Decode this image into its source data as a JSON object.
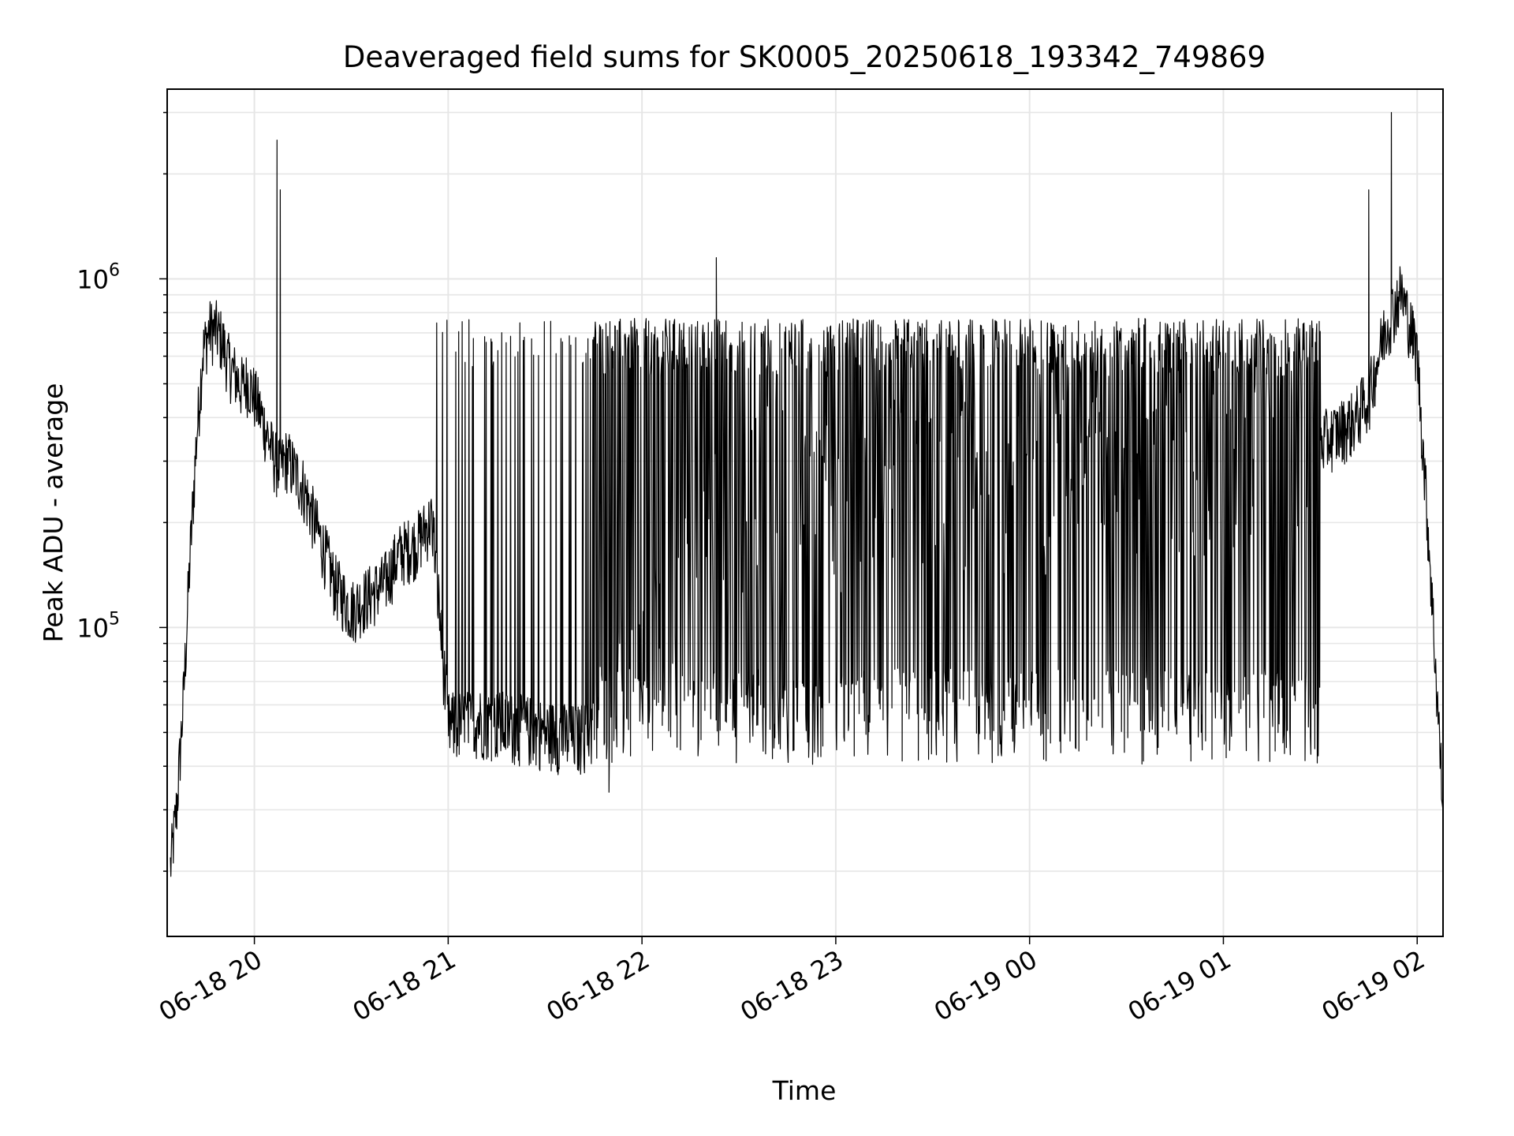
{
  "chart_data": {
    "type": "line",
    "title": "Deaveraged field sums for SK0005_20250618_193342_749869",
    "xlabel": "Time",
    "ylabel": "Peak ADU - average",
    "yscale": "log",
    "ylim": [
      13000,
      3500000
    ],
    "xlim": [
      "2025-06-18 19:33",
      "2025-06-19 02:08"
    ],
    "grid": true,
    "x_ticks": [
      {
        "label": "06-18 20",
        "value": "2025-06-18 20:00"
      },
      {
        "label": "06-18 21",
        "value": "2025-06-18 21:00"
      },
      {
        "label": "06-18 22",
        "value": "2025-06-18 22:00"
      },
      {
        "label": "06-18 23",
        "value": "2025-06-18 23:00"
      },
      {
        "label": "06-19 00",
        "value": "2025-06-19 00:00"
      },
      {
        "label": "06-19 01",
        "value": "2025-06-19 01:00"
      },
      {
        "label": "06-19 02",
        "value": "2025-06-19 02:00"
      }
    ],
    "y_ticks": [
      {
        "base": "10",
        "exp": "5",
        "value": 100000
      },
      {
        "base": "10",
        "exp": "6",
        "value": 1000000
      }
    ],
    "series": [
      {
        "color": "#000000",
        "x": [
          "2025-06-18 19:34",
          "2025-06-18 19:36",
          "2025-06-18 19:38",
          "2025-06-18 19:40",
          "2025-06-18 19:42",
          "2025-06-18 19:44",
          "2025-06-18 19:46",
          "2025-06-18 19:48",
          "2025-06-18 19:50",
          "2025-06-18 19:52",
          "2025-06-18 19:54",
          "2025-06-18 19:56",
          "2025-06-18 19:58",
          "2025-06-18 20:00",
          "2025-06-18 20:02",
          "2025-06-18 20:04",
          "2025-06-18 20:06",
          "2025-06-18 20:08",
          "2025-06-18 20:10",
          "2025-06-18 20:15",
          "2025-06-18 20:20",
          "2025-06-18 20:25",
          "2025-06-18 20:30",
          "2025-06-18 20:35",
          "2025-06-18 20:40",
          "2025-06-18 20:45",
          "2025-06-18 20:50",
          "2025-06-18 20:55",
          "2025-06-18 21:00",
          "2025-06-18 21:10",
          "2025-06-18 21:20",
          "2025-06-18 21:30",
          "2025-06-18 21:40",
          "2025-06-18 21:50",
          "2025-06-18 22:00",
          "2025-06-18 22:10",
          "2025-06-18 22:20",
          "2025-06-18 22:30",
          "2025-06-18 22:40",
          "2025-06-18 22:50",
          "2025-06-18 23:00",
          "2025-06-18 23:10",
          "2025-06-18 23:20",
          "2025-06-18 23:30",
          "2025-06-18 23:40",
          "2025-06-18 23:50",
          "2025-06-19 00:00",
          "2025-06-19 00:10",
          "2025-06-19 00:20",
          "2025-06-19 00:30",
          "2025-06-19 00:40",
          "2025-06-19 00:50",
          "2025-06-19 01:00",
          "2025-06-19 01:10",
          "2025-06-19 01:20",
          "2025-06-19 01:30",
          "2025-06-19 01:40",
          "2025-06-19 01:45",
          "2025-06-19 01:50",
          "2025-06-19 01:55",
          "2025-06-19 02:00",
          "2025-06-19 02:04",
          "2025-06-19 02:08"
        ],
        "y": [
          20000,
          30000,
          60000,
          150000,
          330000,
          600000,
          700000,
          700000,
          650000,
          560000,
          520000,
          480000,
          500000,
          450000,
          400000,
          350000,
          300000,
          280000,
          300000,
          250000,
          180000,
          130000,
          110000,
          120000,
          130000,
          160000,
          170000,
          200000,
          50000,
          52000,
          50000,
          48000,
          46000,
          52000,
          65000,
          90000,
          150000,
          200000,
          220000,
          240000,
          200000,
          220000,
          230000,
          220000,
          230000,
          220000,
          230000,
          240000,
          230000,
          220000,
          230000,
          240000,
          250000,
          250000,
          300000,
          330000,
          380000,
          450000,
          700000,
          900000,
          600000,
          150000,
          30000
        ],
        "spikes": [
          {
            "x": "2025-06-18 20:07",
            "y": 2500000
          },
          {
            "x": "2025-06-18 20:08",
            "y": 1800000
          },
          {
            "x": "2025-06-18 22:23",
            "y": 1150000
          },
          {
            "x": "2025-06-19 01:52",
            "y": 3000000
          },
          {
            "x": "2025-06-19 01:45",
            "y": 1800000
          }
        ],
        "band": {
          "high": 700000,
          "low": 45000
        }
      }
    ]
  }
}
